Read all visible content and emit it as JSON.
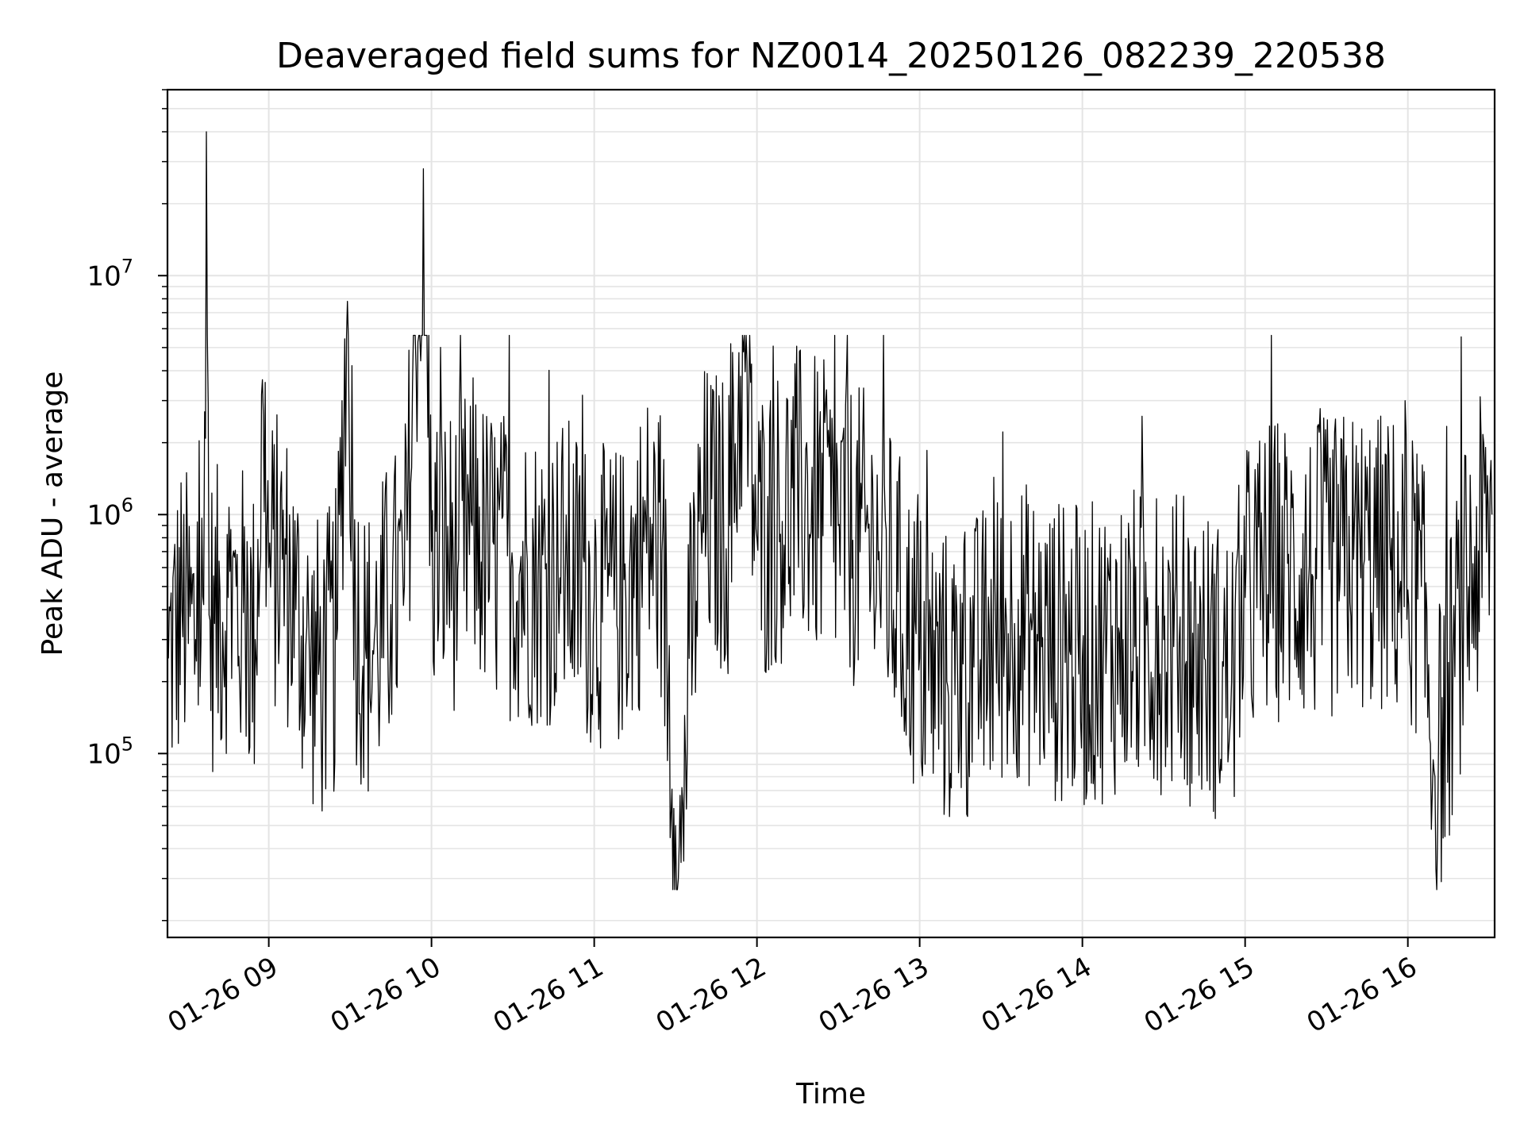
{
  "chart_data": {
    "type": "line",
    "title": "Deaveraged field sums for NZ0014_20250126_082239_220538",
    "xlabel": "Time",
    "ylabel": "Peak ADU - average",
    "yscale": "log",
    "ylim": [
      17000,
      60000000
    ],
    "xlim": [
      "2025-01-26 08:22:39",
      "2025-01-26 16:32:00"
    ],
    "x_tick_labels": [
      "01-26 09",
      "01-26 10",
      "01-26 11",
      "01-26 12",
      "01-26 13",
      "01-26 14",
      "01-26 15",
      "01-26 16"
    ],
    "y_tick_labels": [
      {
        "base": "10",
        "exp": "5",
        "value": 100000
      },
      {
        "base": "10",
        "exp": "6",
        "value": 1000000
      },
      {
        "base": "10",
        "exp": "7",
        "value": 10000000
      }
    ],
    "grid": true,
    "line_color": "#000000",
    "series": [
      {
        "x": [
          "2025-01-26 08:23",
          "2025-01-26 08:28",
          "2025-01-26 08:33",
          "2025-01-26 08:36",
          "2025-01-26 08:37",
          "2025-01-26 08:38",
          "2025-01-26 08:40",
          "2025-01-26 08:45",
          "2025-01-26 08:50",
          "2025-01-26 08:55",
          "2025-01-26 08:58",
          "2025-01-26 09:00",
          "2025-01-26 09:05",
          "2025-01-26 09:10",
          "2025-01-26 09:15",
          "2025-01-26 09:20",
          "2025-01-26 09:25",
          "2025-01-26 09:29",
          "2025-01-26 09:32",
          "2025-01-26 09:36",
          "2025-01-26 09:40",
          "2025-01-26 09:45",
          "2025-01-26 09:50",
          "2025-01-26 09:57",
          "2025-01-26 10:00",
          "2025-01-26 10:10",
          "2025-01-26 10:15",
          "2025-01-26 10:20",
          "2025-01-26 10:30",
          "2025-01-26 10:40",
          "2025-01-26 10:50",
          "2025-01-26 11:00",
          "2025-01-26 11:10",
          "2025-01-26 11:20",
          "2025-01-26 11:25",
          "2025-01-26 11:30",
          "2025-01-26 11:31",
          "2025-01-26 11:32",
          "2025-01-26 11:35",
          "2025-01-26 11:40",
          "2025-01-26 11:50",
          "2025-01-26 11:55",
          "2025-01-26 12:00",
          "2025-01-26 12:15",
          "2025-01-26 12:30",
          "2025-01-26 12:45",
          "2025-01-26 13:00",
          "2025-01-26 13:10",
          "2025-01-26 13:20",
          "2025-01-26 13:35",
          "2025-01-26 13:45",
          "2025-01-26 14:00",
          "2025-01-26 14:15",
          "2025-01-26 14:30",
          "2025-01-26 14:45",
          "2025-01-26 14:55",
          "2025-01-26 15:00",
          "2025-01-26 15:10",
          "2025-01-26 15:25",
          "2025-01-26 15:40",
          "2025-01-26 15:55",
          "2025-01-26 16:05",
          "2025-01-26 16:10",
          "2025-01-26 16:20",
          "2025-01-26 16:31"
        ],
        "y": [
          250000,
          400000,
          300000,
          420000,
          40000000,
          380000,
          350000,
          450000,
          380000,
          300000,
          2600000,
          600000,
          650000,
          400000,
          250000,
          220000,
          300000,
          7800000,
          400000,
          250000,
          300000,
          420000,
          500000,
          28000000,
          700000,
          650000,
          900000,
          700000,
          600000,
          550000,
          600000,
          450000,
          450000,
          800000,
          700000,
          50000,
          30000,
          35000,
          250000,
          1000000,
          900000,
          4800000,
          800000,
          1200000,
          900000,
          700000,
          250000,
          200000,
          230000,
          350000,
          280000,
          250000,
          300000,
          300000,
          250000,
          200000,
          450000,
          600000,
          550000,
          650000,
          600000,
          500000,
          80000,
          400000,
          1000000
        ]
      }
    ]
  }
}
